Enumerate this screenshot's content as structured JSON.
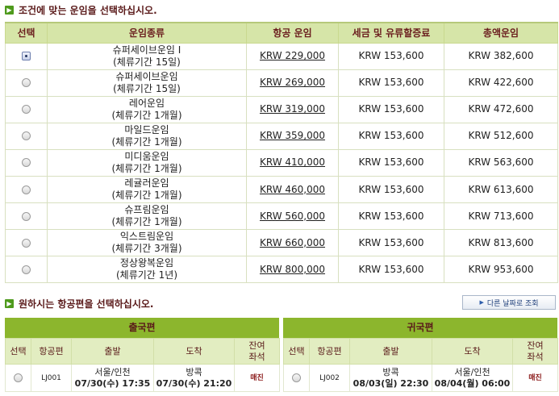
{
  "fare_section": {
    "title": "조건에 맞는 운임을 선택하십시오.",
    "headers": [
      "선택",
      "운임종류",
      "항공 운임",
      "세금 및 유류할증료",
      "총액운임"
    ],
    "rows": [
      {
        "name": "슈퍼세이브운임 I",
        "period": "(체류기간 15일)",
        "airfare": "KRW 229,000",
        "tax": "KRW 153,600",
        "total": "KRW 382,600",
        "selected": true
      },
      {
        "name": "슈퍼세이브운임",
        "period": "(체류기간 15일)",
        "airfare": "KRW 269,000",
        "tax": "KRW 153,600",
        "total": "KRW 422,600",
        "selected": false
      },
      {
        "name": "레어운임",
        "period": "(체류기간 1개월)",
        "airfare": "KRW 319,000",
        "tax": "KRW 153,600",
        "total": "KRW 472,600",
        "selected": false
      },
      {
        "name": "마일드운임",
        "period": "(체류기간 1개월)",
        "airfare": "KRW 359,000",
        "tax": "KRW 153,600",
        "total": "KRW 512,600",
        "selected": false
      },
      {
        "name": "미디움운임",
        "period": "(체류기간 1개월)",
        "airfare": "KRW 410,000",
        "tax": "KRW 153,600",
        "total": "KRW 563,600",
        "selected": false
      },
      {
        "name": "레귤러운임",
        "period": "(체류기간 1개월)",
        "airfare": "KRW 460,000",
        "tax": "KRW 153,600",
        "total": "KRW 613,600",
        "selected": false
      },
      {
        "name": "슈프림운임",
        "period": "(체류기간 1개월)",
        "airfare": "KRW 560,000",
        "tax": "KRW 153,600",
        "total": "KRW 713,600",
        "selected": false
      },
      {
        "name": "익스트림운임",
        "period": "(체류기간 3개월)",
        "airfare": "KRW 660,000",
        "tax": "KRW 153,600",
        "total": "KRW 813,600",
        "selected": false
      },
      {
        "name": "정상왕복운임",
        "period": "(체류기간 1년)",
        "airfare": "KRW 800,000",
        "tax": "KRW 153,600",
        "total": "KRW 953,600",
        "selected": false
      }
    ]
  },
  "flight_section": {
    "title": "원하시는 항공편을 선택하십시오.",
    "other_date_button": "다른 날짜로 조회",
    "outbound": {
      "title": "출국편",
      "headers": [
        "선택",
        "항공편",
        "출발",
        "도착",
        "잔여\n좌석"
      ],
      "flight": {
        "code": "LJ001",
        "dep_city": "서울/인천",
        "dep_time": "07/30(수) 17:35",
        "arr_city": "방콕",
        "arr_time": "07/30(수) 21:20",
        "seats": "매진"
      }
    },
    "inbound": {
      "title": "귀국편",
      "headers": [
        "선택",
        "항공편",
        "출발",
        "도착",
        "잔여\n좌석"
      ],
      "flight": {
        "code": "LJ002",
        "dep_city": "방콕",
        "dep_time": "08/03(일) 22:30",
        "arr_city": "서울/인천",
        "arr_time": "08/04(월) 06:00",
        "seats": "매진"
      }
    }
  },
  "icons": {
    "section_marker": "arrow-right-icon",
    "radio": "radio-button"
  },
  "colors": {
    "header_bg": "#d6e5a8",
    "panel_header_bg": "#8cb62d",
    "title_text": "#5a1a1a",
    "accent_green": "#4e9a1c"
  }
}
